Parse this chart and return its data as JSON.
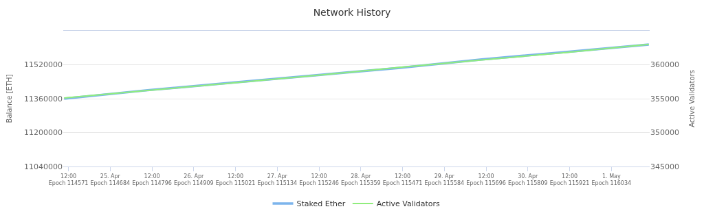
{
  "chart_data": {
    "type": "line",
    "title": "Network History",
    "ylabel": "Balance [ETH]",
    "y2label": "Active Validators",
    "x": [
      "--04-24T10:45",
      "--04-25T10:45",
      "--04-26T10:45",
      "--04-27T10:45",
      "--04-28T10:45",
      "--04-29T10:45",
      "--04-30T10:45",
      "--05-01T10:45"
    ],
    "series": [
      {
        "name": "Staked Ether",
        "color": "#7cb5ec",
        "values": [
          11360000,
          11400000,
          11435000,
          11470000,
          11505000,
          11545000,
          11580000,
          11615000
        ]
      },
      {
        "name": "Active Validators",
        "color": "#90ed7d",
        "axis": "y2",
        "values": [
          355100,
          356200,
          357300,
          358400,
          359600,
          360700,
          361800,
          363000
        ]
      }
    ],
    "xlim": [
      "--04-24T10:30",
      "--05-01T11:00"
    ],
    "xticks": [
      {
        "value": "--04-24T12:00",
        "label": "12:00\nEpoch 114571"
      },
      {
        "value": "--04-25T00:00",
        "label": "25. Apr\nEpoch 114684"
      },
      {
        "value": "--04-25T12:00",
        "label": "12:00\nEpoch 114796"
      },
      {
        "value": "--04-26T00:00",
        "label": "26. Apr\nEpoch 114909"
      },
      {
        "value": "--04-26T12:00",
        "label": "12:00\nEpoch 115021"
      },
      {
        "value": "--04-27T00:00",
        "label": "27. Apr\nEpoch 115134"
      },
      {
        "value": "--04-27T12:00",
        "label": "12:00\nEpoch 115246"
      },
      {
        "value": "--04-28T00:00",
        "label": "28. Apr\nEpoch 115359"
      },
      {
        "value": "--04-28T12:00",
        "label": "12:00\nEpoch 115471"
      },
      {
        "value": "--04-29T00:00",
        "label": "29. Apr\nEpoch 115584"
      },
      {
        "value": "--04-29T12:00",
        "label": "12:00\nEpoch 115696"
      },
      {
        "value": "--04-30T00:00",
        "label": "30. Apr\nEpoch 115809"
      },
      {
        "value": "--04-30T12:00",
        "label": "12:00\nEpoch 115921"
      },
      {
        "value": "--05-01T00:00",
        "label": "1. May\nEpoch 116034"
      }
    ],
    "ylim": [
      11040000,
      11680000
    ],
    "yticks": [
      11040000,
      11200000,
      11360000,
      11520000
    ],
    "y2lim": [
      345000,
      365000
    ],
    "y2ticks": [
      345000,
      350000,
      355000,
      360000
    ],
    "grid": "y",
    "legend": "bottom",
    "marker": "none",
    "line_style": "solid"
  }
}
